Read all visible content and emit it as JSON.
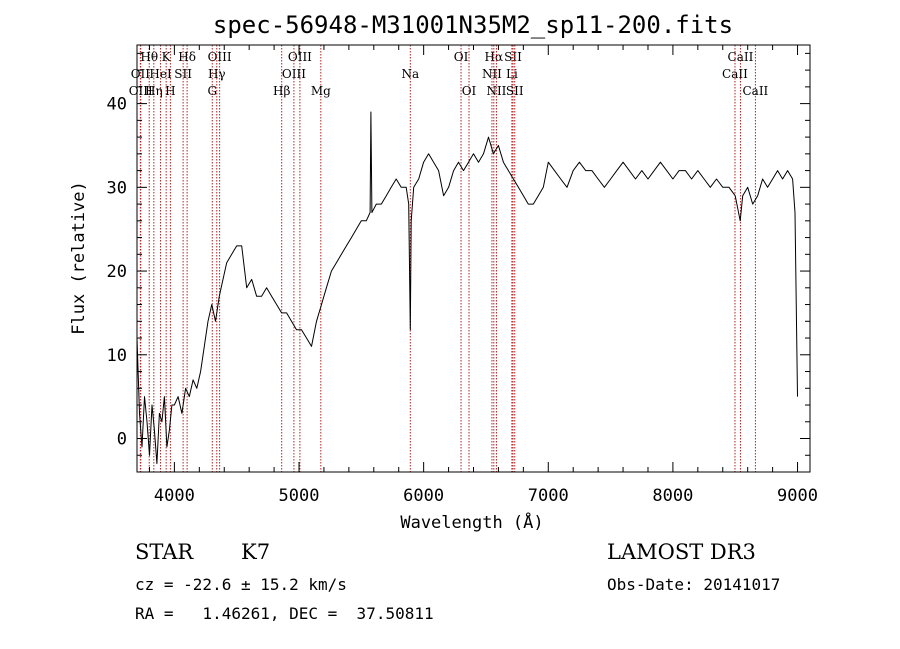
{
  "chart_data": {
    "type": "line",
    "title": "spec-56948-M31001N35M2_sp11-200.fits",
    "xlabel": "Wavelength (Å)",
    "ylabel": "Flux (relative)",
    "xlim": [
      3700,
      9100
    ],
    "ylim": [
      -4,
      47
    ],
    "xticks": [
      4000,
      5000,
      6000,
      7000,
      8000,
      9000
    ],
    "yticks": [
      0,
      10,
      20,
      30,
      40
    ],
    "grid": false,
    "series": [
      {
        "x": [
          3700,
          3720,
          3740,
          3760,
          3780,
          3800,
          3820,
          3840,
          3860,
          3880,
          3900,
          3920,
          3940,
          3960,
          3980,
          4000,
          4030,
          4060,
          4090,
          4120,
          4150,
          4180,
          4210,
          4240,
          4270,
          4300,
          4330,
          4360,
          4390,
          4420,
          4460,
          4500,
          4540,
          4580,
          4620,
          4660,
          4700,
          4740,
          4780,
          4820,
          4860,
          4900,
          4940,
          4980,
          5020,
          5060,
          5100,
          5140,
          5180,
          5220,
          5260,
          5300,
          5340,
          5380,
          5420,
          5460,
          5500,
          5540,
          5570,
          5577,
          5585,
          5620,
          5660,
          5700,
          5740,
          5780,
          5820,
          5860,
          5880,
          5893,
          5900,
          5920,
          5960,
          6000,
          6040,
          6080,
          6120,
          6160,
          6200,
          6240,
          6280,
          6320,
          6360,
          6400,
          6440,
          6480,
          6520,
          6560,
          6600,
          6640,
          6680,
          6720,
          6760,
          6800,
          6840,
          6880,
          6920,
          6960,
          7000,
          7050,
          7100,
          7150,
          7200,
          7250,
          7300,
          7350,
          7400,
          7450,
          7500,
          7550,
          7600,
          7650,
          7700,
          7750,
          7800,
          7850,
          7900,
          7950,
          8000,
          8050,
          8100,
          8150,
          8200,
          8250,
          8300,
          8350,
          8400,
          8450,
          8500,
          8540,
          8560,
          8600,
          8640,
          8680,
          8720,
          8760,
          8800,
          8840,
          8880,
          8920,
          8960,
          8980,
          9000
        ],
        "y": [
          12,
          3,
          -1,
          5,
          2,
          -2,
          4,
          1,
          -3,
          3,
          2,
          5,
          -1,
          1,
          4,
          4,
          5,
          3,
          6,
          5,
          7,
          6,
          8,
          11,
          14,
          16,
          14,
          17,
          19,
          21,
          22,
          23,
          23,
          18,
          19,
          17,
          17,
          18,
          17,
          16,
          15,
          15,
          14,
          13,
          13,
          12,
          11,
          14,
          16,
          18,
          20,
          21,
          22,
          23,
          24,
          25,
          26,
          26,
          27,
          39,
          27,
          28,
          28,
          29,
          30,
          31,
          30,
          30,
          28,
          13,
          26,
          30,
          31,
          33,
          34,
          33,
          32,
          29,
          30,
          32,
          33,
          32,
          33,
          34,
          33,
          34,
          36,
          34,
          35,
          33,
          32,
          31,
          30,
          29,
          28,
          28,
          29,
          30,
          33,
          32,
          31,
          30,
          32,
          33,
          32,
          32,
          31,
          30,
          31,
          32,
          33,
          32,
          31,
          32,
          31,
          32,
          33,
          32,
          31,
          32,
          32,
          31,
          32,
          31,
          30,
          31,
          30,
          30,
          29,
          26,
          29,
          30,
          28,
          29,
          31,
          30,
          31,
          32,
          31,
          32,
          31,
          27,
          5
        ]
      }
    ],
    "annotations": [
      {
        "label": "Hθ",
        "wavelength": 3798,
        "row": 0
      },
      {
        "label": "OII",
        "wavelength": 3727,
        "row": 1
      },
      {
        "label": "OIII",
        "wavelength": 3730,
        "row": 2
      },
      {
        "label": "K",
        "wavelength": 3934,
        "row": 0
      },
      {
        "label": "HeI",
        "wavelength": 3889,
        "row": 1
      },
      {
        "label": "Hη",
        "wavelength": 3835,
        "row": 2
      },
      {
        "label": "H",
        "wavelength": 3968,
        "row": 2
      },
      {
        "label": "SII",
        "wavelength": 4070,
        "row": 1
      },
      {
        "label": "Hδ",
        "wavelength": 4102,
        "row": 0
      },
      {
        "label": "OIII",
        "wavelength": 4363,
        "row": 0
      },
      {
        "label": "Hγ",
        "wavelength": 4340,
        "row": 1
      },
      {
        "label": "G",
        "wavelength": 4304,
        "row": 2
      },
      {
        "label": "OIII",
        "wavelength": 5007,
        "row": 0
      },
      {
        "label": "OIII",
        "wavelength": 4959,
        "row": 1
      },
      {
        "label": "Hβ",
        "wavelength": 4861,
        "row": 2
      },
      {
        "label": "Mg",
        "wavelength": 5175,
        "row": 2
      },
      {
        "label": "Na",
        "wavelength": 5893,
        "row": 1
      },
      {
        "label": "OI",
        "wavelength": 6300,
        "row": 0
      },
      {
        "label": "OI",
        "wavelength": 6364,
        "row": 2
      },
      {
        "label": "Hα",
        "wavelength": 6563,
        "row": 0
      },
      {
        "label": "NII",
        "wavelength": 6548,
        "row": 1
      },
      {
        "label": "NII",
        "wavelength": 6584,
        "row": 2
      },
      {
        "label": "SII",
        "wavelength": 6717,
        "row": 0
      },
      {
        "label": "Li",
        "wavelength": 6708,
        "row": 1
      },
      {
        "label": "SII",
        "wavelength": 6731,
        "row": 2
      },
      {
        "label": "CaII",
        "wavelength": 8542,
        "row": 0
      },
      {
        "label": "CaII",
        "wavelength": 8498,
        "row": 1
      },
      {
        "label": "CaII",
        "wavelength": 8662,
        "row": 2
      }
    ]
  },
  "info": {
    "class": "STAR",
    "subclass": "K7",
    "survey": "LAMOST DR3",
    "cz": "cz = -22.6 ± 15.2 km/s",
    "obs_date": "Obs-Date: 20141017",
    "radec": "RA =   1.46261, DEC =  37.50811"
  },
  "colors": {
    "spectrum": "#000000",
    "line_markers": "#b22222"
  }
}
